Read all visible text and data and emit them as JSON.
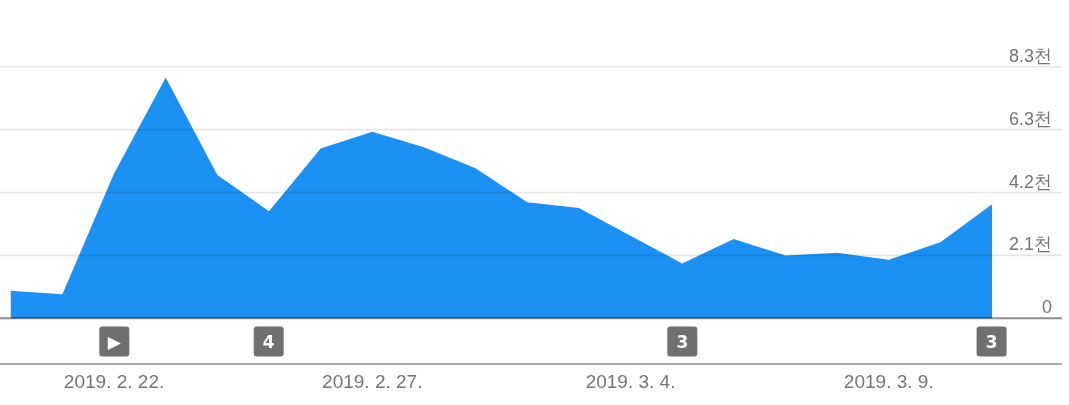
{
  "chart_data": {
    "type": "area",
    "x": [
      "2019-02-20",
      "2019-02-21",
      "2019-02-22",
      "2019-02-23",
      "2019-02-24",
      "2019-02-25",
      "2019-02-26",
      "2019-02-27",
      "2019-02-28",
      "2019-03-01",
      "2019-03-02",
      "2019-03-03",
      "2019-03-04",
      "2019-03-05",
      "2019-03-06",
      "2019-03-07",
      "2019-03-08",
      "2019-03-09",
      "2019-03-10",
      "2019-03-11"
    ],
    "values": [
      0.91,
      0.8,
      4.8,
      7.98,
      4.75,
      3.55,
      5.63,
      6.18,
      5.67,
      4.97,
      3.85,
      3.66,
      2.74,
      1.82,
      2.63,
      2.08,
      2.17,
      1.94,
      2.52,
      3.78
    ],
    "color": "#1b92f3",
    "xlim": [
      "2019-02-19T19:00",
      "2019-03-12T08:30"
    ],
    "xticks": [
      {
        "value": "2019-02-22",
        "label": "2019. 2. 22."
      },
      {
        "value": "2019-02-27",
        "label": "2019. 2. 27."
      },
      {
        "value": "2019-03-04",
        "label": "2019. 3. 4."
      },
      {
        "value": "2019-03-09",
        "label": "2019. 3. 9."
      }
    ],
    "ylim": [
      0,
      8.34
    ],
    "yticks": [
      0,
      {
        "value": 2.085,
        "label": "2.1천"
      },
      {
        "value": 4.17,
        "label": "4.2천"
      },
      {
        "value": 6.255,
        "label": "6.3천"
      },
      {
        "value": 8.34,
        "label": "8.3천"
      }
    ],
    "grid": "y",
    "annotations": [
      "▶",
      "4",
      "3",
      "3"
    ]
  }
}
